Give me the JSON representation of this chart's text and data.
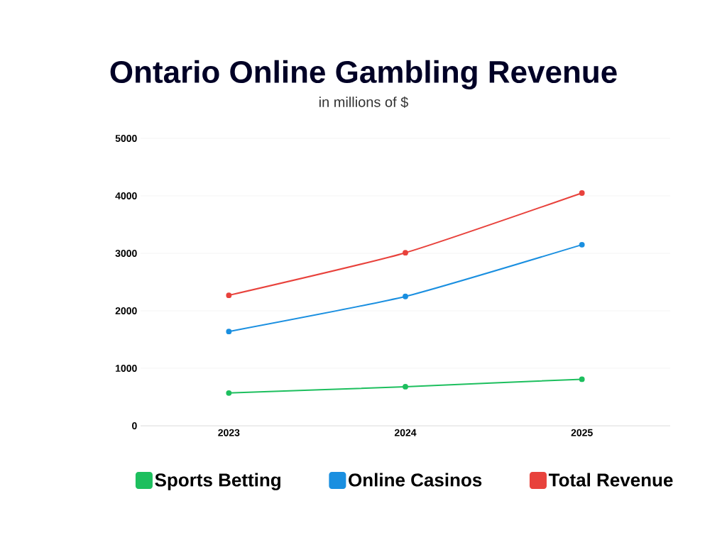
{
  "chart_data": {
    "type": "line",
    "title": "Ontario Online Gambling Revenue",
    "subtitle": "in millions of $",
    "categories": [
      "2023",
      "2024",
      "2025"
    ],
    "series": [
      {
        "name": "Sports Betting",
        "color": "#1dbf5e",
        "values": [
          570,
          680,
          810
        ]
      },
      {
        "name": "Online Casinos",
        "color": "#1a8fe0",
        "values": [
          1640,
          2250,
          3150
        ]
      },
      {
        "name": "Total Revenue",
        "color": "#e8423c",
        "values": [
          2270,
          3010,
          4050
        ]
      }
    ],
    "ylim": [
      0,
      5000
    ],
    "yticks": [
      0,
      1000,
      2000,
      3000,
      4000,
      5000
    ],
    "grid": "y",
    "legend": "bottom",
    "marker": "circle",
    "line_style": "solid"
  }
}
